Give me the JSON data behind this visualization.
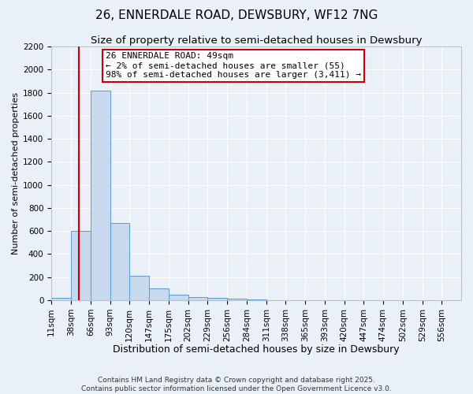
{
  "title": "26, ENNERDALE ROAD, DEWSBURY, WF12 7NG",
  "subtitle": "Size of property relative to semi-detached houses in Dewsbury",
  "xlabel": "Distribution of semi-detached houses by size in Dewsbury",
  "ylabel": "Number of semi-detached properties",
  "bin_labels": [
    "11sqm",
    "38sqm",
    "66sqm",
    "93sqm",
    "120sqm",
    "147sqm",
    "175sqm",
    "202sqm",
    "229sqm",
    "256sqm",
    "284sqm",
    "311sqm",
    "338sqm",
    "365sqm",
    "393sqm",
    "420sqm",
    "447sqm",
    "474sqm",
    "502sqm",
    "529sqm",
    "556sqm"
  ],
  "bin_edges": [
    11,
    38,
    66,
    93,
    120,
    147,
    175,
    202,
    229,
    256,
    284,
    311,
    338,
    365,
    393,
    420,
    447,
    474,
    502,
    529,
    556
  ],
  "bar_heights": [
    20,
    600,
    1820,
    670,
    215,
    100,
    45,
    30,
    20,
    15,
    5,
    3,
    1,
    1,
    0,
    0,
    0,
    0,
    0,
    0
  ],
  "bar_color": "#c8d9ee",
  "bar_edge_color": "#5b9bd5",
  "vline_x": 49,
  "vline_color": "#cc0000",
  "ylim": [
    0,
    2200
  ],
  "yticks": [
    0,
    200,
    400,
    600,
    800,
    1000,
    1200,
    1400,
    1600,
    1800,
    2000,
    2200
  ],
  "annotation_title": "26 ENNERDALE ROAD: 49sqm",
  "annotation_line1": "← 2% of semi-detached houses are smaller (55)",
  "annotation_line2": "98% of semi-detached houses are larger (3,411) →",
  "annotation_box_color": "#cc0000",
  "background_color": "#eaf0f8",
  "grid_color": "#ffffff",
  "footer1": "Contains HM Land Registry data © Crown copyright and database right 2025.",
  "footer2": "Contains public sector information licensed under the Open Government Licence v3.0.",
  "title_fontsize": 11,
  "subtitle_fontsize": 9.5,
  "xlabel_fontsize": 9,
  "ylabel_fontsize": 8,
  "tick_fontsize": 7.5,
  "annotation_fontsize": 8,
  "footer_fontsize": 6.5
}
